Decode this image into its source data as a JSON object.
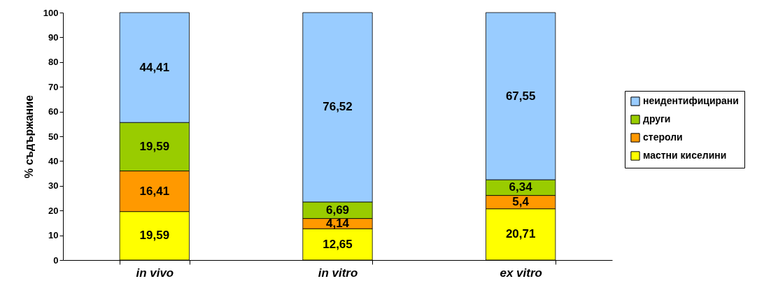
{
  "chart_data": {
    "type": "bar",
    "stacked": true,
    "ylabel": "% съдържание",
    "categories": [
      "in vivo",
      "in vitro",
      "ex vitro"
    ],
    "ylim": [
      0,
      100
    ],
    "yticks": [
      0,
      10,
      20,
      30,
      40,
      50,
      60,
      70,
      80,
      90,
      100
    ],
    "grid": false,
    "legend": "right",
    "series": [
      {
        "name": "мастни киселини",
        "color": "#ffff00",
        "values": [
          19.59,
          12.65,
          20.71
        ],
        "value_labels": [
          "19,59",
          "12,65",
          "20,71"
        ]
      },
      {
        "name": "стероли",
        "color": "#ff9900",
        "values": [
          16.41,
          4.14,
          5.4
        ],
        "value_labels": [
          "16,41",
          "4,14",
          "5,4"
        ]
      },
      {
        "name": "други",
        "color": "#99cc00",
        "values": [
          19.59,
          6.69,
          6.34
        ],
        "value_labels": [
          "19,59",
          "6,69",
          "6,34"
        ]
      },
      {
        "name": "неидентифицирани",
        "color": "#99ccff",
        "values": [
          44.41,
          76.52,
          67.55
        ],
        "value_labels": [
          "44,41",
          "76,52",
          "67,55"
        ]
      }
    ]
  }
}
